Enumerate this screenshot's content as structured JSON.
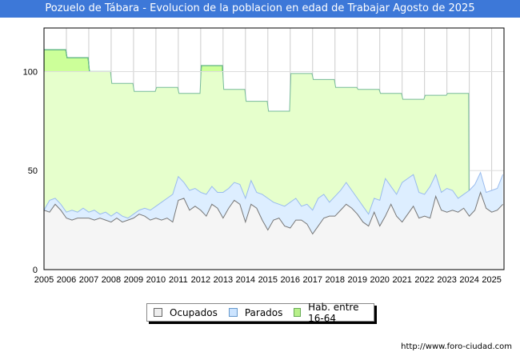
{
  "chart_data": {
    "type": "area",
    "title": "Pozuelo de Tábara - Evolucion de la poblacion en edad de Trabajar Agosto de 2025",
    "xlabel": "",
    "ylabel": "",
    "ylim": [
      0,
      122
    ],
    "xlim": [
      2005,
      2025.55
    ],
    "yticks": [
      0,
      50,
      100
    ],
    "xticks": [
      "2005",
      "2006",
      "2007",
      "2008",
      "2009",
      "2010",
      "2011",
      "2012",
      "2013",
      "2014",
      "2015",
      "2016",
      "2017",
      "2018",
      "2019",
      "2020",
      "2021",
      "2022",
      "2023",
      "2024",
      "2025"
    ],
    "grid": true,
    "legend_position": "bottom",
    "legend": [
      "Ocupados",
      "Parados",
      "Hab. entre 16-64"
    ],
    "hab_years": [
      2005,
      2006,
      2007,
      2008,
      2009,
      2010,
      2011,
      2012,
      2013,
      2014,
      2015,
      2016,
      2017,
      2018,
      2019,
      2020,
      2021,
      2022,
      2023
    ],
    "hab_values": [
      111,
      107,
      100,
      94,
      90,
      92,
      89,
      103,
      91,
      85,
      80,
      99,
      96,
      92,
      91,
      89,
      86,
      88,
      89
    ],
    "quarterly_start": 2005,
    "ocupados": [
      30,
      29,
      33,
      30,
      26,
      25,
      26,
      26,
      26,
      25,
      26,
      25,
      24,
      26,
      24,
      25,
      26,
      28,
      27,
      25,
      26,
      25,
      26,
      24,
      35,
      36,
      30,
      32,
      30,
      27,
      33,
      31,
      26,
      31,
      35,
      33,
      24,
      33,
      31,
      25,
      20,
      25,
      26,
      22,
      21,
      25,
      25,
      23,
      18,
      22,
      26,
      27,
      27,
      30,
      33,
      31,
      28,
      24,
      22,
      29,
      22,
      27,
      33,
      27,
      24,
      28,
      32,
      26,
      27,
      26,
      37,
      30,
      29,
      30,
      29,
      31,
      27,
      30,
      39,
      31,
      29,
      30,
      33
    ],
    "ocupados_plus_parados": [
      30,
      35,
      36,
      33,
      29,
      30,
      29,
      31,
      29,
      30,
      28,
      29,
      27,
      29,
      27,
      26,
      28,
      30,
      31,
      30,
      32,
      34,
      36,
      38,
      47,
      44,
      40,
      41,
      39,
      38,
      42,
      39,
      39,
      41,
      44,
      43,
      36,
      45,
      39,
      38,
      36,
      34,
      33,
      32,
      34,
      36,
      32,
      33,
      30,
      36,
      38,
      34,
      37,
      40,
      44,
      40,
      36,
      32,
      28,
      36,
      35,
      46,
      42,
      38,
      44,
      46,
      48,
      39,
      38,
      42,
      48,
      39,
      41,
      40,
      36,
      38,
      40,
      43,
      49,
      39,
      40,
      41,
      48
    ],
    "colors": {
      "ocupados": "#f5f5f5",
      "parados": "#ddeeff",
      "hab": "#e6ffcc",
      "hab_over": "#ccff99"
    }
  },
  "legend_labels": {
    "ocupados": "Ocupados",
    "parados": "Parados",
    "hab": "Hab. entre 16-64"
  },
  "watermark": "FORO-CIUDAD.COM",
  "footer": "http://www.foro-ciudad.com"
}
